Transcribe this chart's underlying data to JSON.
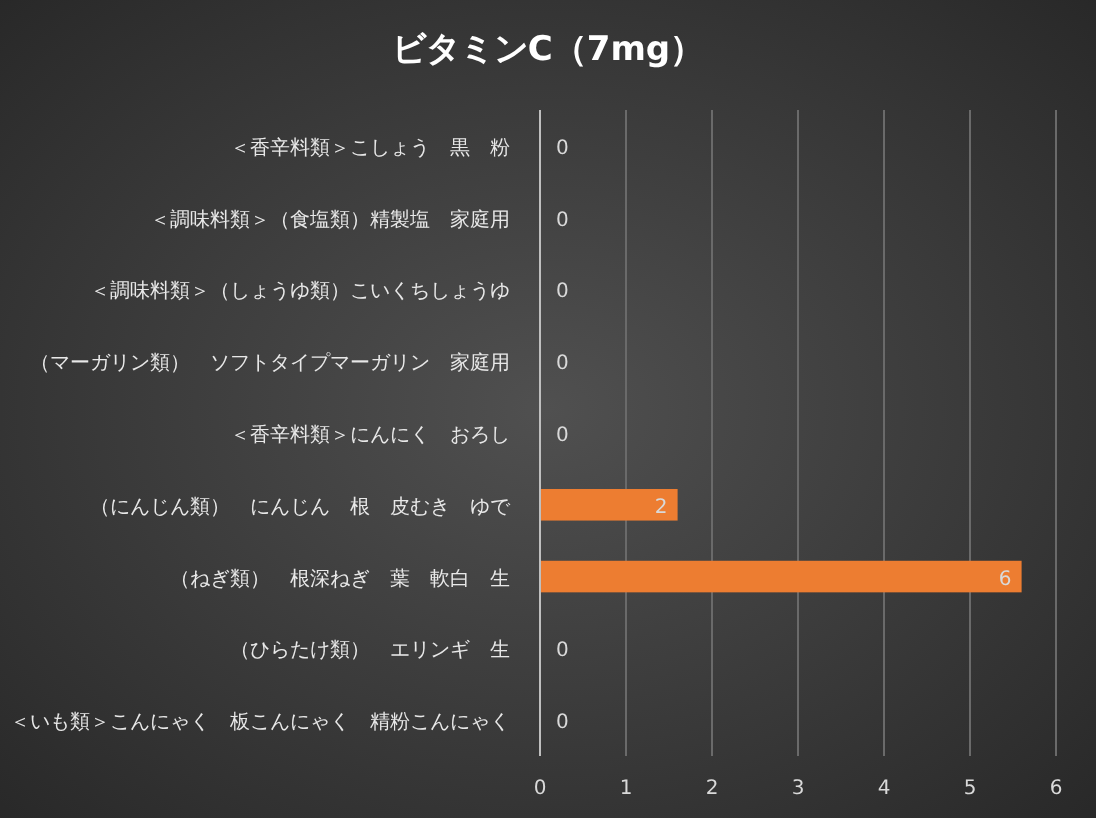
{
  "chart_data": {
    "type": "bar",
    "orientation": "horizontal",
    "title": "ビタミンC（7mg）",
    "categories": [
      "＜香辛料類＞こしょう　黒　粉",
      "＜調味料類＞（食塩類）精製塩　家庭用",
      "＜調味料類＞（しょうゆ類）こいくちしょうゆ",
      "（マーガリン類）　ソフトタイプマーガリン　家庭用",
      "＜香辛料類＞にんにく　おろし",
      "（にんじん類）　にんじん　根　皮むき　ゆで",
      "（ねぎ類）　根深ねぎ　葉　軟白　生",
      "（ひらたけ類）　エリンギ　生",
      "＜いも類＞こんにゃく　板こんにゃく　精粉こんにゃく"
    ],
    "values": [
      0,
      0,
      0,
      0,
      0,
      1.6,
      5.6,
      0,
      0
    ],
    "value_labels": [
      "0",
      "0",
      "0",
      "0",
      "0",
      "2",
      "6",
      "0",
      "0"
    ],
    "color": "#ed7d31",
    "xlim": [
      0,
      6
    ],
    "xticks": [
      0,
      1,
      2,
      3,
      4,
      5,
      6
    ],
    "grid": "x"
  }
}
